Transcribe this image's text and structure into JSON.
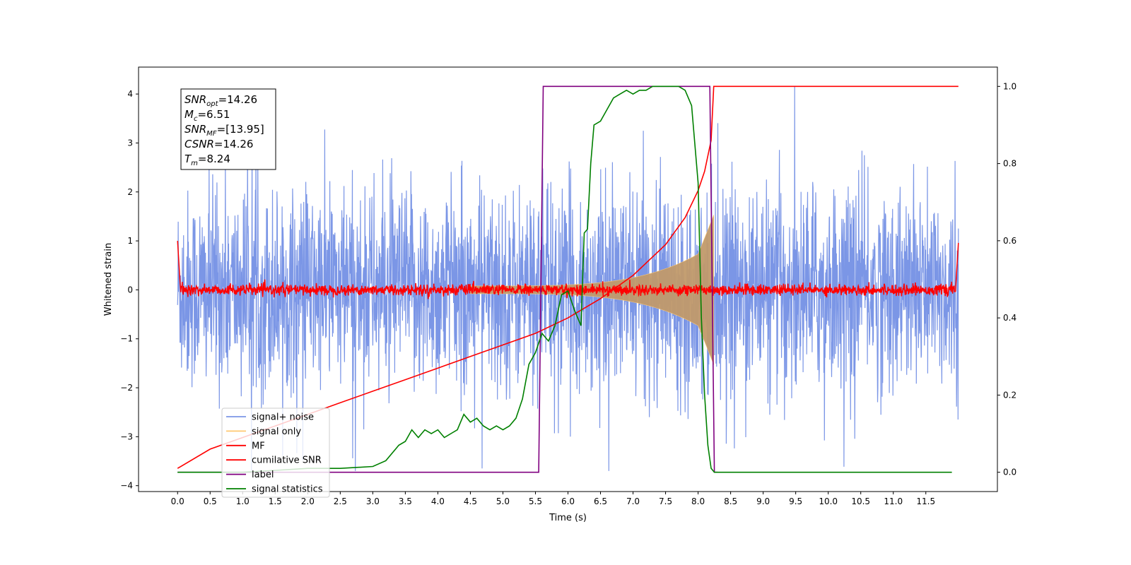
{
  "chart_data": {
    "type": "line",
    "title": "",
    "xlabel": "Time (s)",
    "ylabel": "Whitened strain",
    "xlim": [
      -0.6,
      12.6
    ],
    "ylim": [
      -4.12,
      4.55
    ],
    "ylim_right": [
      -0.05,
      1.05
    ],
    "xticks": [
      0.0,
      0.5,
      1.0,
      1.5,
      2.0,
      2.5,
      3.0,
      3.5,
      4.0,
      4.5,
      5.0,
      5.5,
      6.0,
      6.5,
      7.0,
      7.5,
      8.0,
      8.5,
      9.0,
      9.5,
      10.0,
      10.5,
      11.0,
      11.5
    ],
    "xtick_labels": [
      "0.0",
      "0.5",
      "1.0",
      "1.5",
      "2.0",
      "2.5",
      "3.0",
      "3.5",
      "4.0",
      "4.5",
      "5.0",
      "5.5",
      "6.0",
      "6.5",
      "7.0",
      "7.5",
      "8.0",
      "8.5",
      "9.0",
      "9.5",
      "10.0",
      "10.5",
      "11.0",
      "11.5"
    ],
    "yticks": [
      -4,
      -3,
      -2,
      -1,
      0,
      1,
      2,
      3,
      4
    ],
    "ytick_labels": [
      "−4",
      "−3",
      "−2",
      "−1",
      "0",
      "1",
      "2",
      "3",
      "4"
    ],
    "yticks_right": [
      0.0,
      0.2,
      0.4,
      0.6,
      0.8,
      1.0
    ],
    "ytick_labels_right": [
      "0.0",
      "0.2",
      "0.4",
      "0.6",
      "0.8",
      "1.0"
    ],
    "grid": false,
    "legend_position": "lower-left",
    "legend": [
      {
        "label": "signal+ noise",
        "color": "#7b96e6"
      },
      {
        "label": "signal only",
        "color": "#ffc870"
      },
      {
        "label": "MF",
        "color": "#ff0000"
      },
      {
        "label": "cumilative SNR",
        "color": "#ff0000"
      },
      {
        "label": "label",
        "color": "#800080"
      },
      {
        "label": "signal statistics",
        "color": "#008000"
      }
    ],
    "annotation": {
      "lines": [
        {
          "base": "SNR",
          "sub": "opt",
          "rest": "=14.26"
        },
        {
          "base": "M",
          "sub": "c",
          "rest": "=6.51"
        },
        {
          "base": "SNR",
          "sub": "MF",
          "rest": "=[13.95]"
        },
        {
          "base": "CSNR",
          "sub": "",
          "rest": "=14.26"
        },
        {
          "base": "T",
          "sub": "m",
          "rest": "=8.24"
        }
      ]
    },
    "series": [
      {
        "name": "cumilative SNR",
        "axis": "right",
        "color": "#ff0000",
        "x": [
          0.0,
          0.5,
          1.0,
          1.5,
          2.0,
          2.5,
          3.0,
          3.5,
          4.0,
          4.5,
          5.0,
          5.5,
          6.0,
          6.5,
          7.0,
          7.5,
          7.8,
          8.0,
          8.1,
          8.2,
          8.24,
          12.0
        ],
        "y": [
          0.01,
          0.06,
          0.09,
          0.12,
          0.15,
          0.18,
          0.21,
          0.24,
          0.27,
          0.3,
          0.33,
          0.36,
          0.4,
          0.45,
          0.51,
          0.59,
          0.66,
          0.73,
          0.78,
          0.86,
          1.0,
          1.0
        ]
      },
      {
        "name": "label",
        "axis": "right",
        "color": "#800080",
        "x": [
          0.0,
          5.55,
          5.62,
          8.18,
          8.25,
          8.3
        ],
        "y": [
          0.0,
          0.0,
          1.0,
          1.0,
          0.0,
          0.0
        ]
      },
      {
        "name": "signal statistics",
        "axis": "right",
        "color": "#008000",
        "x": [
          0.0,
          0.5,
          1.0,
          1.5,
          2.0,
          2.5,
          3.0,
          3.2,
          3.4,
          3.5,
          3.6,
          3.7,
          3.8,
          3.9,
          4.0,
          4.1,
          4.2,
          4.3,
          4.4,
          4.5,
          4.6,
          4.7,
          4.8,
          4.9,
          5.0,
          5.1,
          5.2,
          5.3,
          5.4,
          5.5,
          5.6,
          5.7,
          5.8,
          5.9,
          6.0,
          6.1,
          6.2,
          6.25,
          6.3,
          6.35,
          6.4,
          6.5,
          6.6,
          6.7,
          6.8,
          6.9,
          7.0,
          7.1,
          7.2,
          7.3,
          7.4,
          7.5,
          7.6,
          7.7,
          7.8,
          7.9,
          8.0,
          8.05,
          8.1,
          8.15,
          8.2,
          8.25,
          8.3,
          8.5,
          9.0,
          10.0,
          11.0,
          11.9
        ],
        "y": [
          0.0,
          0.0,
          0.0,
          0.005,
          0.01,
          0.01,
          0.015,
          0.03,
          0.07,
          0.08,
          0.11,
          0.09,
          0.11,
          0.1,
          0.11,
          0.09,
          0.1,
          0.11,
          0.15,
          0.13,
          0.14,
          0.12,
          0.11,
          0.12,
          0.11,
          0.12,
          0.14,
          0.19,
          0.28,
          0.31,
          0.36,
          0.34,
          0.38,
          0.46,
          0.47,
          0.42,
          0.38,
          0.62,
          0.63,
          0.8,
          0.9,
          0.91,
          0.94,
          0.97,
          0.98,
          0.99,
          0.98,
          0.99,
          0.99,
          1.0,
          1.0,
          1.0,
          1.0,
          1.0,
          0.99,
          0.95,
          0.75,
          0.4,
          0.2,
          0.07,
          0.01,
          0.0,
          0.0,
          0.0,
          0.0,
          0.0,
          0.0,
          0.0
        ]
      }
    ]
  }
}
